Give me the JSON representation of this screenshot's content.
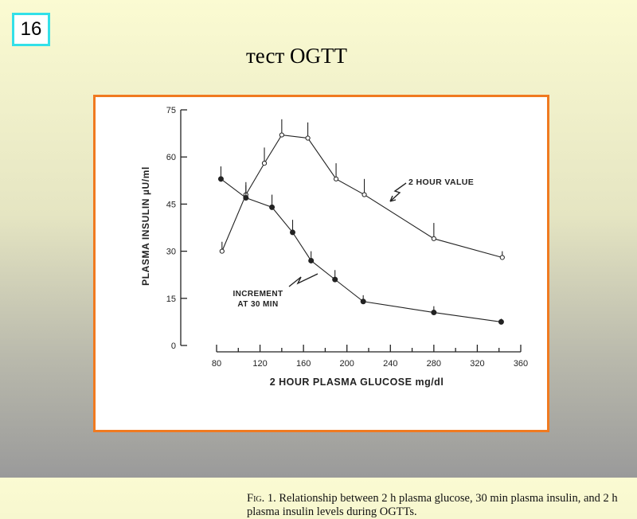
{
  "slide": {
    "number": "16",
    "title": "тест OGTT"
  },
  "caption": {
    "lead": "Fig. 1.",
    "text": " Relationship between 2 h plasma glucose, 30 min plasma insulin, and 2 h plasma insulin levels during OGTTs."
  },
  "chart_data": {
    "type": "line",
    "xlabel": "2 HOUR PLASMA GLUCOSE mg/dl",
    "ylabel": "PLASMA INSULIN µU/ml",
    "xlim": [
      80,
      360
    ],
    "ylim": [
      0,
      75
    ],
    "x_ticks": [
      80,
      120,
      160,
      200,
      240,
      280,
      320,
      360
    ],
    "y_ticks": [
      0,
      15,
      30,
      45,
      60,
      75
    ],
    "grid": false,
    "series": [
      {
        "name": "2 HOUR VALUE",
        "marker": "open-circle",
        "x": [
          85,
          107,
          124,
          140,
          164,
          190,
          216,
          280,
          343
        ],
        "y": [
          30,
          48,
          58,
          67,
          66,
          53,
          48,
          34,
          28
        ],
        "err": [
          3,
          4,
          5,
          5,
          5,
          5,
          5,
          5,
          2
        ]
      },
      {
        "name": "INCREMENT AT 30 MIN",
        "marker": "filled-circle",
        "x": [
          84,
          107,
          131,
          150,
          167,
          189,
          215,
          280,
          342
        ],
        "y": [
          53,
          47,
          44,
          36,
          27,
          21,
          14,
          10.5,
          7.5
        ],
        "err": [
          4,
          4,
          4,
          4,
          3,
          3,
          2,
          2,
          1
        ]
      }
    ]
  }
}
